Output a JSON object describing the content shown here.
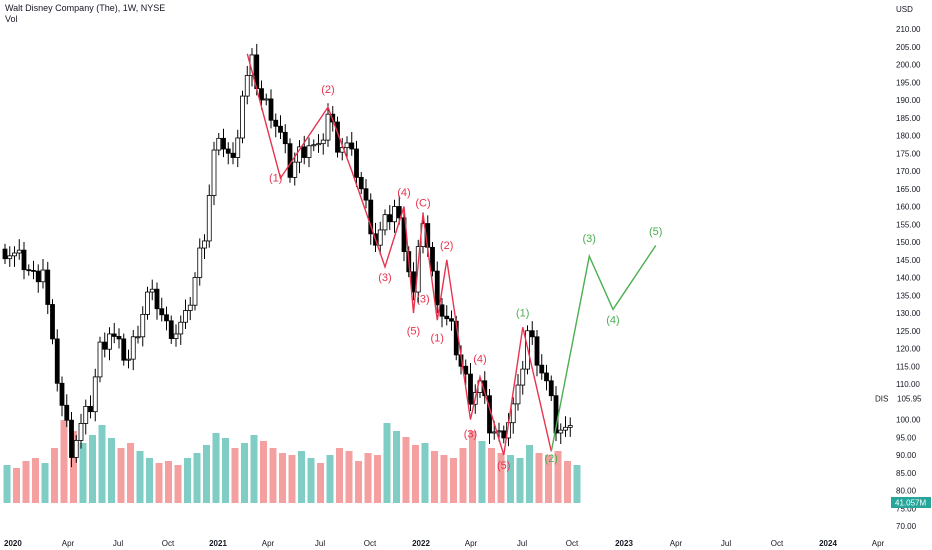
{
  "header": {
    "title": "Walt Disney Company (The), 1W, NYSE",
    "vol_label": "Vol"
  },
  "colors": {
    "up_volume": "#7fcdc4",
    "down_volume": "#f4a0a0",
    "wave_red": "#e8334f",
    "wave_green": "#4caf50",
    "candle_up": "#ffffff",
    "candle_down": "#000000",
    "badge_green": "#26a69a",
    "axis_text": "#131722"
  },
  "chart_data": {
    "type": "candlestick",
    "title": "Walt Disney Company (The), 1W, NYSE",
    "currency": "USD",
    "ylim": [
      67.5,
      215
    ],
    "y_ticks": [
      "210.00",
      "205.00",
      "200.00",
      "195.00",
      "190.00",
      "185.00",
      "180.00",
      "175.00",
      "170.00",
      "165.00",
      "160.00",
      "155.00",
      "150.00",
      "145.00",
      "140.00",
      "135.00",
      "130.00",
      "125.00",
      "120.00",
      "115.00",
      "110.00",
      "100.00",
      "95.00",
      "90.00",
      "85.00",
      "80.00",
      "75.00",
      "70.00"
    ],
    "x_ticks": [
      "2020",
      "Apr",
      "Jul",
      "Oct",
      "2021",
      "Apr",
      "Jul",
      "Oct",
      "2022",
      "Apr",
      "Jul",
      "Oct",
      "2023",
      "Apr",
      "Jul",
      "Oct",
      "2024",
      "Apr"
    ],
    "last_price": {
      "symbol": "DIS",
      "value": "105.95"
    },
    "volume_badge": "41.057M",
    "price_path": [
      [
        0,
        148
      ],
      [
        2,
        146
      ],
      [
        4,
        144
      ],
      [
        6,
        140
      ],
      [
        8,
        143
      ],
      [
        10,
        120
      ],
      [
        12,
        104
      ],
      [
        14,
        92
      ],
      [
        16,
        98
      ],
      [
        18,
        104
      ],
      [
        20,
        120
      ],
      [
        22,
        125
      ],
      [
        24,
        120
      ],
      [
        26,
        117
      ],
      [
        28,
        126
      ],
      [
        30,
        135
      ],
      [
        32,
        133
      ],
      [
        34,
        126
      ],
      [
        36,
        125
      ],
      [
        38,
        128
      ],
      [
        40,
        140
      ],
      [
        42,
        153
      ],
      [
        44,
        175
      ],
      [
        46,
        178
      ],
      [
        48,
        172
      ],
      [
        50,
        192
      ],
      [
        52,
        200
      ],
      [
        54,
        190
      ],
      [
        56,
        187
      ],
      [
        58,
        180
      ],
      [
        60,
        170
      ],
      [
        62,
        175
      ],
      [
        64,
        178
      ],
      [
        66,
        175
      ],
      [
        68,
        186
      ],
      [
        70,
        178
      ],
      [
        72,
        177
      ],
      [
        74,
        170
      ],
      [
        76,
        160
      ],
      [
        78,
        150
      ],
      [
        80,
        155
      ],
      [
        82,
        160
      ],
      [
        84,
        150
      ],
      [
        86,
        135
      ],
      [
        88,
        157
      ],
      [
        90,
        140
      ],
      [
        92,
        130
      ],
      [
        94,
        125
      ],
      [
        96,
        115
      ],
      [
        98,
        107
      ],
      [
        100,
        110
      ],
      [
        102,
        98
      ],
      [
        104,
        95
      ],
      [
        106,
        100
      ],
      [
        108,
        107
      ],
      [
        110,
        125
      ],
      [
        112,
        118
      ],
      [
        114,
        110
      ],
      [
        116,
        98
      ],
      [
        118,
        96
      ],
      [
        120,
        106
      ]
    ],
    "volume": [
      38,
      35,
      42,
      45,
      40,
      55,
      83,
      72,
      60,
      68,
      78,
      65,
      55,
      60,
      52,
      45,
      40,
      42,
      38,
      45,
      50,
      58,
      70,
      65,
      55,
      60,
      68,
      62,
      55,
      50,
      48,
      52,
      45,
      40,
      48,
      55,
      52,
      42,
      50,
      48,
      80,
      72,
      66,
      58,
      60,
      52,
      48,
      45,
      55,
      72,
      62,
      55,
      50,
      48,
      45,
      58,
      50,
      48,
      52,
      42,
      38
    ],
    "wave_labels": [
      {
        "text": "(1)",
        "color": "red",
        "x": 57,
        "y": 167
      },
      {
        "text": "(2)",
        "color": "red",
        "x": 68,
        "y": 192
      },
      {
        "text": "(3)",
        "color": "red",
        "x": 80,
        "y": 139
      },
      {
        "text": "(4)",
        "color": "red",
        "x": 84,
        "y": 163
      },
      {
        "text": "(5)",
        "color": "red",
        "x": 86,
        "y": 124
      },
      {
        "text": "(C)",
        "color": "red",
        "x": 88,
        "y": 160
      },
      {
        "text": "(3)",
        "color": "red",
        "x": 88,
        "y": 133
      },
      {
        "text": "(1)",
        "color": "red",
        "x": 91,
        "y": 122
      },
      {
        "text": "(2)",
        "color": "red",
        "x": 93,
        "y": 148
      },
      {
        "text": "(3)",
        "color": "red",
        "x": 98,
        "y": 95
      },
      {
        "text": "(4)",
        "color": "red",
        "x": 100,
        "y": 116
      },
      {
        "text": "(5)",
        "color": "red",
        "x": 105,
        "y": 86
      },
      {
        "text": "(1)",
        "color": "green",
        "x": 109,
        "y": 129
      },
      {
        "text": "(2)",
        "color": "green",
        "x": 115,
        "y": 88
      },
      {
        "text": "(3)",
        "color": "green",
        "x": 123,
        "y": 150
      },
      {
        "text": "(4)",
        "color": "green",
        "x": 128,
        "y": 127
      },
      {
        "text": "(5)",
        "color": "green",
        "x": 137,
        "y": 152
      }
    ],
    "red_wave": [
      [
        51,
        203
      ],
      [
        58,
        168
      ],
      [
        68,
        188
      ],
      [
        73,
        170
      ],
      [
        80,
        143
      ],
      [
        84,
        160
      ],
      [
        86,
        130
      ],
      [
        88,
        158
      ],
      [
        91,
        128
      ],
      [
        93,
        145
      ],
      [
        98,
        100
      ],
      [
        100,
        112
      ],
      [
        105,
        90
      ],
      [
        109,
        126
      ],
      [
        115,
        91
      ]
    ],
    "green_wave": [
      [
        115,
        91
      ],
      [
        123,
        146
      ],
      [
        128,
        131
      ],
      [
        137,
        149
      ]
    ]
  }
}
